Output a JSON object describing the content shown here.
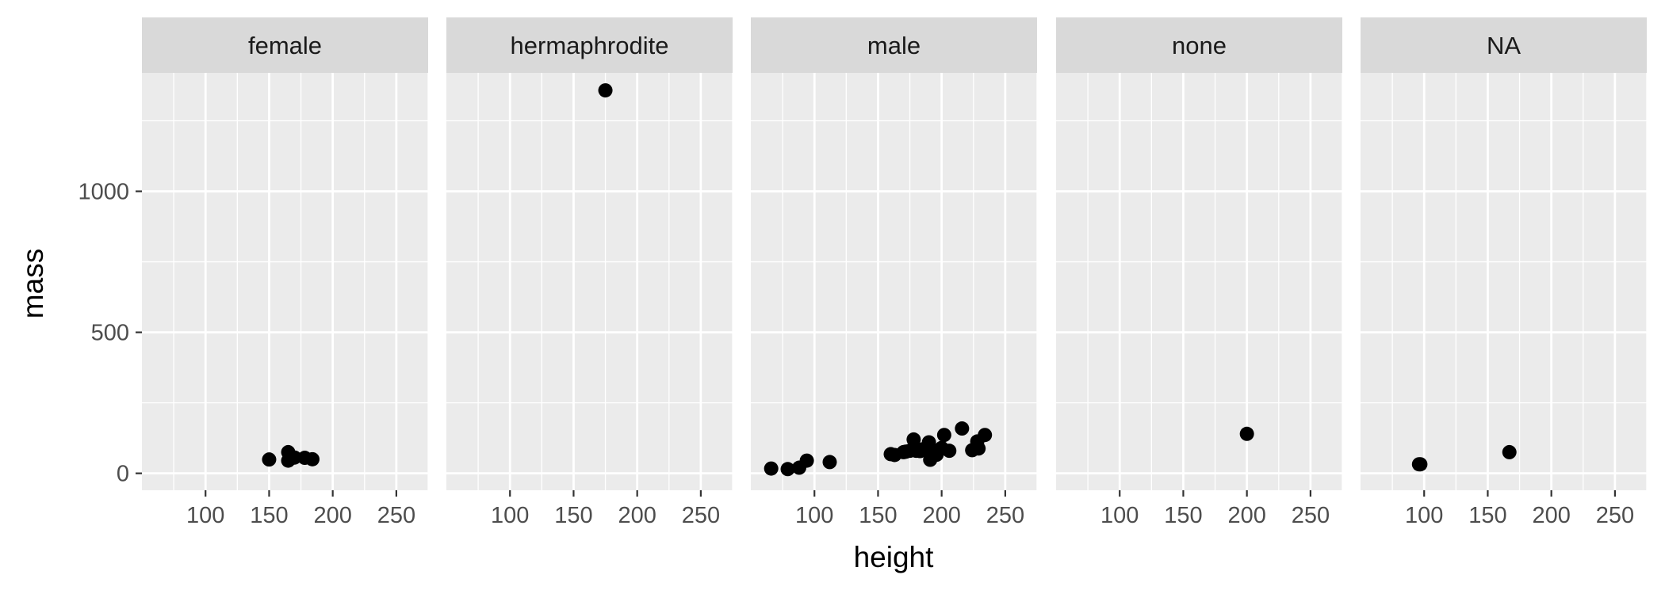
{
  "chart_data": {
    "type": "scatter",
    "title": "",
    "xlabel": "height",
    "ylabel": "mass",
    "xlim": [
      50,
      275
    ],
    "ylim": [
      -60,
      1420
    ],
    "x_ticks": [
      100,
      150,
      200,
      250
    ],
    "y_ticks": [
      0,
      500,
      1000
    ],
    "grid": true,
    "point_color": "#000000",
    "panel_background": "#ebebeb",
    "strip_background": "#d9d9d9",
    "panels": [
      {
        "label": "female",
        "points": [
          {
            "x": 150,
            "y": 49
          },
          {
            "x": 165,
            "y": 75
          },
          {
            "x": 165,
            "y": 45
          },
          {
            "x": 168,
            "y": 55
          },
          {
            "x": 170,
            "y": 56
          },
          {
            "x": 178,
            "y": 55
          },
          {
            "x": 184,
            "y": 50
          },
          {
            "x": 166,
            "y": 50
          }
        ]
      },
      {
        "label": "hermaphrodite",
        "points": [
          {
            "x": 175,
            "y": 1358
          }
        ]
      },
      {
        "label": "male",
        "points": [
          {
            "x": 66,
            "y": 17
          },
          {
            "x": 79,
            "y": 15
          },
          {
            "x": 88,
            "y": 20
          },
          {
            "x": 94,
            "y": 45
          },
          {
            "x": 112,
            "y": 40
          },
          {
            "x": 160,
            "y": 68
          },
          {
            "x": 163,
            "y": 65
          },
          {
            "x": 170,
            "y": 75
          },
          {
            "x": 172,
            "y": 77
          },
          {
            "x": 175,
            "y": 80
          },
          {
            "x": 178,
            "y": 120
          },
          {
            "x": 180,
            "y": 80
          },
          {
            "x": 183,
            "y": 79
          },
          {
            "x": 185,
            "y": 85
          },
          {
            "x": 188,
            "y": 90
          },
          {
            "x": 190,
            "y": 110
          },
          {
            "x": 191,
            "y": 48
          },
          {
            "x": 193,
            "y": 75
          },
          {
            "x": 196,
            "y": 66
          },
          {
            "x": 198,
            "y": 82
          },
          {
            "x": 200,
            "y": 90
          },
          {
            "x": 202,
            "y": 136
          },
          {
            "x": 206,
            "y": 80
          },
          {
            "x": 216,
            "y": 159
          },
          {
            "x": 224,
            "y": 82
          },
          {
            "x": 228,
            "y": 113
          },
          {
            "x": 229,
            "y": 88
          },
          {
            "x": 234,
            "y": 136
          }
        ]
      },
      {
        "label": "none",
        "points": [
          {
            "x": 200,
            "y": 140
          }
        ]
      },
      {
        "label": "NA",
        "points": [
          {
            "x": 96,
            "y": 32
          },
          {
            "x": 97,
            "y": 32
          },
          {
            "x": 167,
            "y": 75
          }
        ]
      }
    ]
  }
}
